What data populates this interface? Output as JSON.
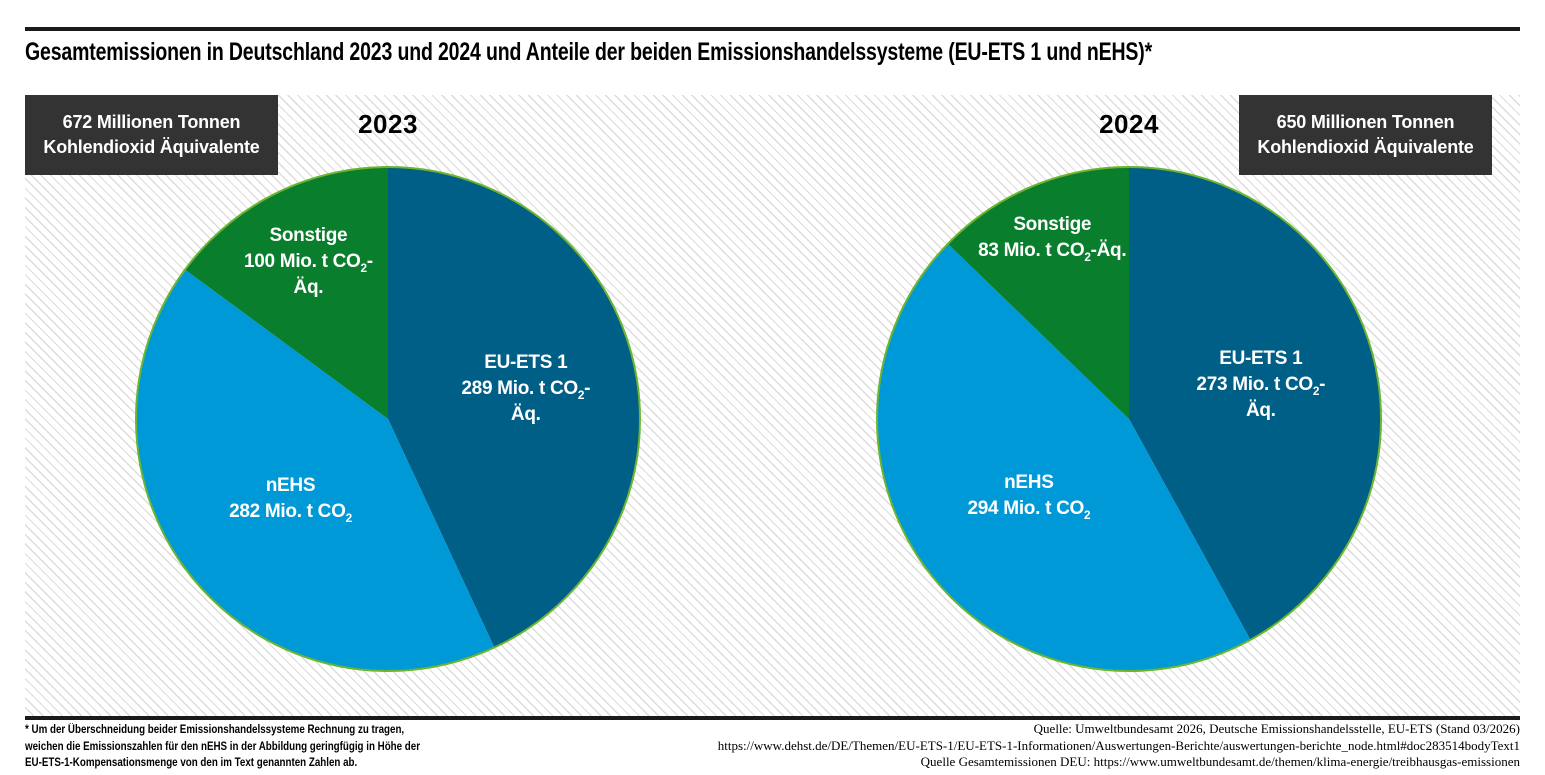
{
  "title": "Gesamtemissionen in Deutschland 2023 und 2024 und Anteile der beiden Emissionshandelssysteme (EU-ETS 1 und nEHS)*",
  "colors": {
    "eu_ets_1": "#005f87",
    "nehs": "#0099d8",
    "sonstige": "#097e2c",
    "pie_outline": "#6cb52e",
    "callout_background": "#333333",
    "hatch_line": "#dcdcdc"
  },
  "chart_data": [
    {
      "type": "pie",
      "title": "2023",
      "categories": [
        "EU-ETS 1",
        "nEHS",
        "Sonstige"
      ],
      "values": [
        289,
        282,
        100
      ],
      "units": [
        "Mio. t CO₂-Äq.",
        "Mio. t CO₂",
        "Mio. t CO₂-Äq."
      ],
      "colors": [
        "#005f87",
        "#0099d8",
        "#097e2c"
      ],
      "slice_label_lines": [
        [
          "EU-ETS 1",
          "289 Mio. t CO₂-",
          "Äq."
        ],
        [
          "nEHS",
          "282 Mio. t CO₂"
        ],
        [
          "Sonstige",
          "100 Mio. t CO₂-",
          "Äq."
        ]
      ],
      "annotation_lines": [
        "672 Millionen Tonnen",
        "Kohlendioxid Äquivalente"
      ],
      "start_angle": "top",
      "direction": "clockwise"
    },
    {
      "type": "pie",
      "title": "2024",
      "categories": [
        "EU-ETS 1",
        "nEHS",
        "Sonstige"
      ],
      "values": [
        273,
        294,
        83
      ],
      "units": [
        "Mio. t CO₂-Äq.",
        "Mio. t CO₂",
        "Mio. t CO₂-Äq."
      ],
      "colors": [
        "#005f87",
        "#0099d8",
        "#097e2c"
      ],
      "slice_label_lines": [
        [
          "EU-ETS 1",
          "273 Mio. t CO₂-",
          "Äq."
        ],
        [
          "nEHS",
          "294 Mio. t CO₂"
        ],
        [
          "Sonstige",
          "83 Mio. t CO₂-Äq."
        ]
      ],
      "annotation_lines": [
        "650 Millionen Tonnen",
        "Kohlendioxid Äquivalente"
      ],
      "start_angle": "top",
      "direction": "clockwise"
    }
  ],
  "footnote": {
    "lines": [
      "* Um der Überschneidung beider Emissionshandelssysteme Rechnung zu tragen,",
      "weichen die Emissionszahlen für den nEHS in der Abbildung geringfügig in Höhe der",
      "EU-ETS-1-Kompensationsmenge von den im Text genannten Zahlen ab."
    ]
  },
  "sources": {
    "lines": [
      "Quelle: Umweltbundesamt 2026, Deutsche Emissionshandelsstelle, EU-ETS (Stand 03/2026)",
      "https://www.dehst.de/DE/Themen/EU-ETS-1/EU-ETS-1-Informationen/Auswertungen-Berichte/auswertungen-berichte_node.html#doc283514bodyText1",
      "Quelle Gesamtemissionen DEU: https://www.umweltbundesamt.de/themen/klima-energie/treibhausgas-emissionen"
    ]
  }
}
